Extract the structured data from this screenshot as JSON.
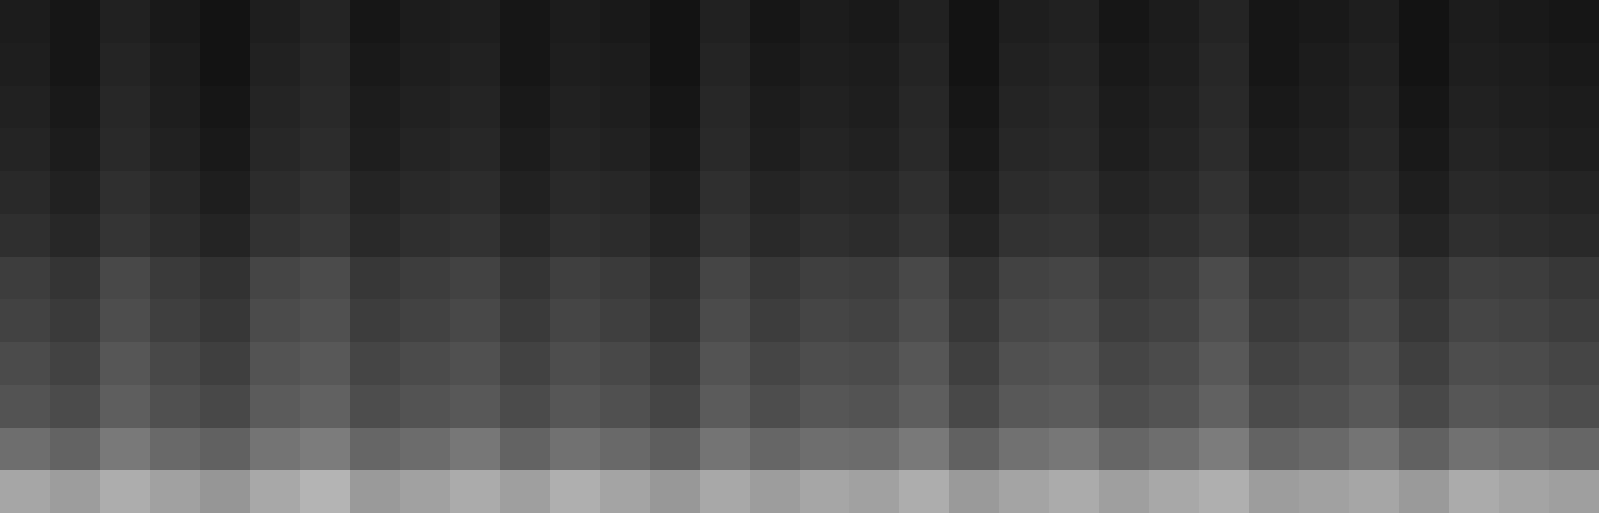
{
  "chart_data": {
    "type": "heatmap",
    "tick_labels": false,
    "grid": false,
    "zlim": [
      0,
      100
    ],
    "cells": [
      [
        62,
        58,
        65,
        60,
        55,
        63,
        68,
        57,
        60,
        64,
        59,
        66,
        61,
        56,
        63,
        58,
        62,
        60,
        65,
        57,
        61,
        64,
        59,
        63,
        66,
        58,
        60,
        62,
        57,
        64,
        61,
        59
      ],
      [
        40,
        36,
        44,
        38,
        35,
        42,
        45,
        37,
        39,
        43,
        36,
        41,
        38,
        34,
        42,
        37,
        40,
        39,
        44,
        35,
        41,
        43,
        37,
        40,
        45,
        36,
        38,
        42,
        35,
        41,
        39,
        37
      ],
      [
        30,
        27,
        34,
        29,
        26,
        33,
        35,
        28,
        30,
        32,
        27,
        31,
        29,
        25,
        33,
        28,
        31,
        30,
        34,
        26,
        32,
        33,
        28,
        30,
        35,
        27,
        29,
        32,
        26,
        31,
        30,
        28
      ],
      [
        27,
        24,
        31,
        26,
        23,
        30,
        32,
        25,
        27,
        29,
        24,
        28,
        26,
        22,
        30,
        25,
        28,
        27,
        31,
        23,
        29,
        30,
        25,
        27,
        32,
        24,
        26,
        29,
        23,
        28,
        27,
        25
      ],
      [
        24,
        21,
        28,
        23,
        20,
        27,
        29,
        22,
        24,
        26,
        21,
        25,
        23,
        19,
        27,
        22,
        25,
        24,
        28,
        20,
        26,
        27,
        22,
        24,
        29,
        21,
        23,
        26,
        20,
        25,
        24,
        22
      ],
      [
        22,
        19,
        26,
        21,
        18,
        25,
        27,
        20,
        22,
        24,
        19,
        23,
        21,
        17,
        25,
        20,
        23,
        22,
        26,
        18,
        24,
        25,
        20,
        22,
        27,
        19,
        21,
        24,
        18,
        23,
        22,
        20
      ],
      [
        17,
        14,
        19,
        16,
        13,
        18,
        20,
        15,
        17,
        18,
        14,
        17,
        16,
        13,
        19,
        15,
        17,
        16,
        19,
        13,
        18,
        19,
        15,
        17,
        20,
        14,
        16,
        18,
        13,
        17,
        16,
        15
      ],
      [
        15,
        12,
        17,
        14,
        11,
        16,
        18,
        13,
        15,
        16,
        12,
        15,
        14,
        11,
        17,
        13,
        15,
        14,
        17,
        11,
        16,
        17,
        13,
        15,
        18,
        12,
        14,
        16,
        11,
        15,
        14,
        13
      ],
      [
        13,
        10,
        15,
        12,
        9,
        14,
        16,
        11,
        13,
        14,
        10,
        13,
        12,
        9,
        15,
        11,
        13,
        12,
        15,
        9,
        14,
        15,
        11,
        13,
        16,
        10,
        12,
        14,
        9,
        13,
        12,
        11
      ],
      [
        12,
        9,
        14,
        11,
        8,
        13,
        15,
        10,
        12,
        13,
        9,
        12,
        11,
        8,
        14,
        10,
        12,
        11,
        14,
        8,
        13,
        14,
        10,
        12,
        15,
        9,
        11,
        13,
        8,
        12,
        11,
        10
      ],
      [
        11,
        8,
        13,
        10,
        7,
        12,
        14,
        9,
        11,
        12,
        8,
        11,
        10,
        7,
        13,
        9,
        11,
        10,
        13,
        7,
        12,
        13,
        9,
        11,
        14,
        8,
        10,
        12,
        7,
        11,
        10,
        9
      ],
      [
        10,
        8,
        12,
        9,
        7,
        11,
        13,
        8,
        10,
        11,
        8,
        10,
        9,
        7,
        12,
        8,
        10,
        9,
        12,
        7,
        11,
        12,
        8,
        10,
        13,
        8,
        9,
        11,
        7,
        10,
        9,
        8
      ]
    ]
  }
}
